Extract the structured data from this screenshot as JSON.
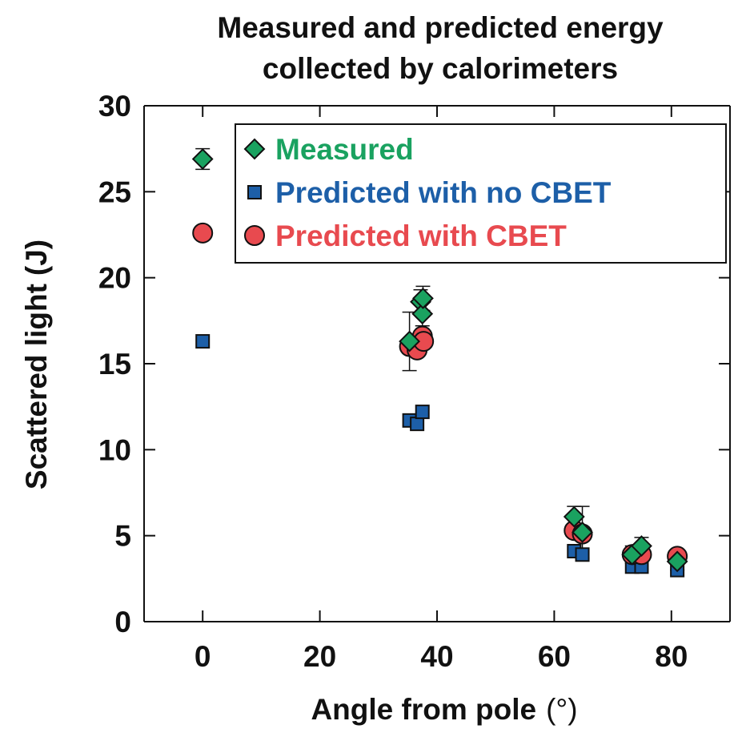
{
  "chart_data": {
    "type": "scatter",
    "title_lines": [
      "Measured and predicted energy",
      "collected by calorimeters"
    ],
    "xlabel": "Angle from pole",
    "xlabel_unit": "(°)",
    "ylabel": "Scattered light",
    "ylabel_unit": "(J)",
    "xlim": [
      -10,
      90
    ],
    "ylim": [
      0,
      30
    ],
    "xticks": [
      0,
      20,
      40,
      60,
      80
    ],
    "yticks": [
      0,
      5,
      10,
      15,
      20,
      25,
      30
    ],
    "xtick_labels": [
      "0",
      "20",
      "40",
      "60",
      "80"
    ],
    "ytick_labels": [
      "0",
      "5",
      "10",
      "15",
      "20",
      "25",
      "30"
    ],
    "grid": false,
    "legend_position": "top-right",
    "series": [
      {
        "name": "Measured",
        "marker": "diamond",
        "color": "#1aa260",
        "points": [
          {
            "x": 0,
            "y": 26.9,
            "err": 0.6
          },
          {
            "x": 35.3,
            "y": 16.3,
            "err": 1.7
          },
          {
            "x": 37.2,
            "y": 18.6,
            "err": 0.7
          },
          {
            "x": 37.5,
            "y": 17.9,
            "err": 0.7
          },
          {
            "x": 37.6,
            "y": 18.8,
            "err": 0.7
          },
          {
            "x": 63.4,
            "y": 6.1,
            "err": 0.6
          },
          {
            "x": 64.8,
            "y": 5.2,
            "err": 1.5
          },
          {
            "x": 73.3,
            "y": 3.9,
            "err": 0.5
          },
          {
            "x": 74.9,
            "y": 4.4,
            "err": 0.5
          },
          {
            "x": 81.0,
            "y": 3.5,
            "err": 0.5
          }
        ]
      },
      {
        "name": "Predicted with no CBET",
        "marker": "square",
        "color": "#1d5fa8",
        "points": [
          {
            "x": 0,
            "y": 16.3
          },
          {
            "x": 35.3,
            "y": 11.7
          },
          {
            "x": 36.6,
            "y": 11.5
          },
          {
            "x": 37.5,
            "y": 12.2
          },
          {
            "x": 63.4,
            "y": 4.1
          },
          {
            "x": 64.8,
            "y": 3.9
          },
          {
            "x": 73.3,
            "y": 3.2
          },
          {
            "x": 74.9,
            "y": 3.2
          },
          {
            "x": 81.0,
            "y": 3.0
          }
        ]
      },
      {
        "name": "Predicted with CBET",
        "marker": "circle",
        "color": "#e84a4f",
        "points": [
          {
            "x": 0,
            "y": 22.6
          },
          {
            "x": 35.3,
            "y": 16.0
          },
          {
            "x": 36.6,
            "y": 15.8
          },
          {
            "x": 37.5,
            "y": 16.6
          },
          {
            "x": 37.7,
            "y": 16.3
          },
          {
            "x": 63.4,
            "y": 5.3
          },
          {
            "x": 64.8,
            "y": 5.1
          },
          {
            "x": 73.3,
            "y": 3.9
          },
          {
            "x": 74.9,
            "y": 3.9
          },
          {
            "x": 81.0,
            "y": 3.8
          }
        ]
      }
    ]
  }
}
